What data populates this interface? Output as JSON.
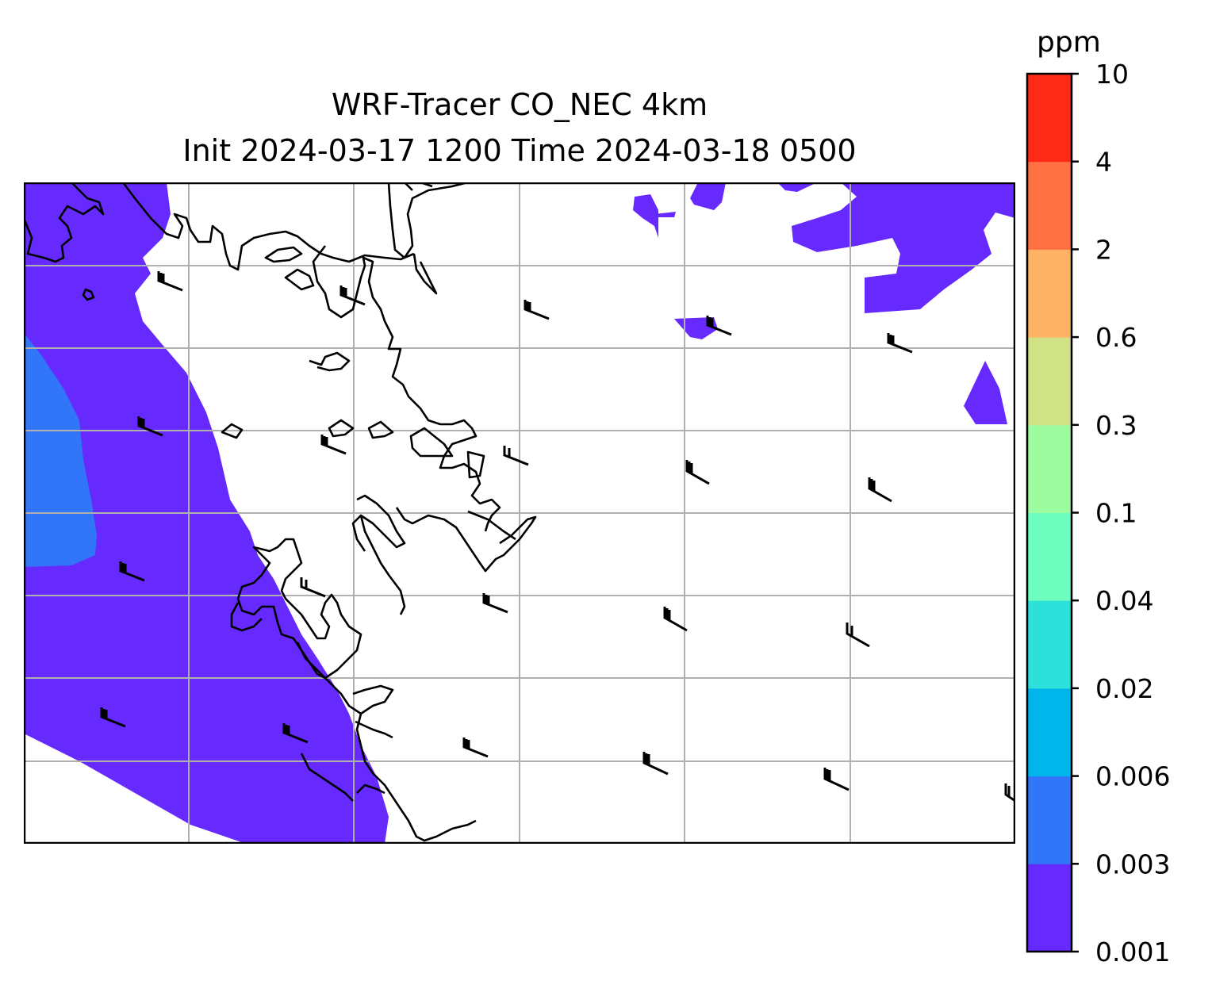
{
  "title": {
    "line1": "WRF-Tracer CO_NEC 4km",
    "line2": "Init 2024-03-17 1200 Time 2024-03-18 0500"
  },
  "colorbar": {
    "unit": "ppm",
    "levels": [
      "0.001",
      "0.003",
      "0.006",
      "0.02",
      "0.04",
      "0.1",
      "0.3",
      "0.6",
      "2",
      "4",
      "10"
    ],
    "colors": [
      "#6629fe",
      "#3176f8",
      "#00b5eb",
      "#2ee0da",
      "#6cfdbf",
      "#9dfca0",
      "#d0e285",
      "#feb266",
      "#ff7043",
      "#ff2a15"
    ]
  },
  "map": {
    "gridlines": true,
    "gridline_color": "#b0b0b0",
    "coastline_color": "#000000",
    "barb_color": "#000000",
    "field_colors_shown": [
      "#6629fe",
      "#3176f8"
    ]
  }
}
